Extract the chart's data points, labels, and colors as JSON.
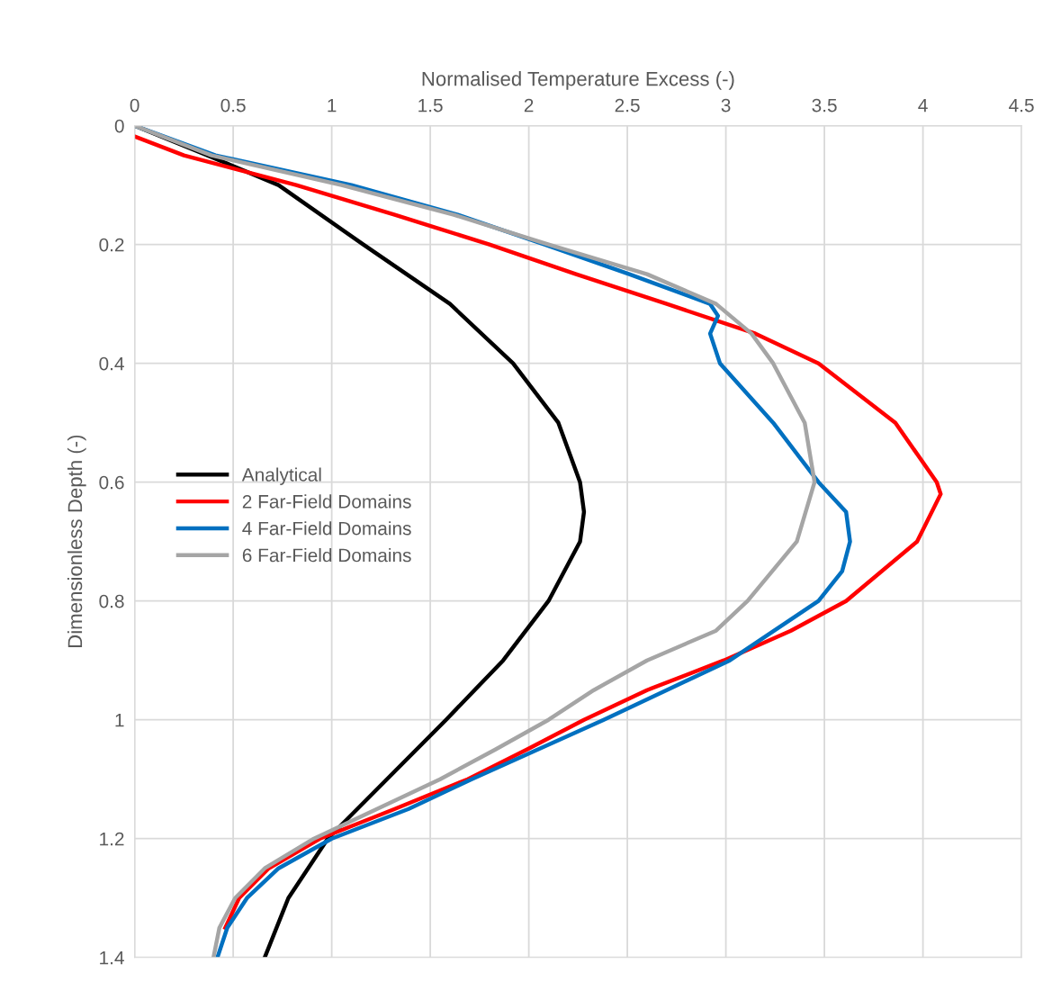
{
  "chart_data": {
    "type": "line",
    "xlabel": "Normalised Temperature Excess (-)",
    "ylabel": "Dimensionless Depth (-)",
    "xlim": [
      0,
      4.5
    ],
    "xticks": [
      0,
      0.5,
      1,
      1.5,
      2,
      2.5,
      3,
      3.5,
      4,
      4.5
    ],
    "ylim": [
      1.4,
      0
    ],
    "yticks": [
      0,
      0.2,
      0.4,
      0.6,
      0.8,
      1,
      1.2,
      1.4
    ],
    "grid": true,
    "legend": "center left",
    "marker": "none",
    "line_style": "solid",
    "series": [
      {
        "name": "Analytical",
        "color": "#000000",
        "x": [
          0,
          0.37,
          0.73,
          1.16,
          1.6,
          1.92,
          2.15,
          2.26,
          2.28,
          2.26,
          2.1,
          1.87,
          1.58,
          1.28,
          0.98,
          0.78,
          0.66
        ],
        "values": [
          0,
          0.05,
          0.1,
          0.2,
          0.3,
          0.4,
          0.5,
          0.6,
          0.65,
          0.7,
          0.8,
          0.9,
          1.0,
          1.1,
          1.2,
          1.3,
          1.4
        ]
      },
      {
        "name": "2 Far-Field Domains",
        "color": "#ff0000",
        "x": [
          0,
          0.25,
          0.82,
          1.32,
          1.8,
          2.24,
          2.7,
          3.15,
          3.47,
          3.86,
          4.07,
          4.09,
          3.97,
          3.61,
          3.33,
          2.99,
          2.6,
          2.28,
          1.99,
          1.69,
          1.32,
          0.94,
          0.68,
          0.53,
          0.46
        ],
        "values": [
          0.018,
          0.05,
          0.1,
          0.15,
          0.2,
          0.25,
          0.3,
          0.35,
          0.4,
          0.5,
          0.6,
          0.62,
          0.7,
          0.8,
          0.85,
          0.9,
          0.95,
          1.0,
          1.05,
          1.1,
          1.15,
          1.2,
          1.25,
          1.3,
          1.35
        ]
      },
      {
        "name": "4 Far-Field Domains",
        "color": "#0070c0",
        "x": [
          0,
          0.41,
          1.1,
          1.64,
          2.08,
          2.51,
          2.92,
          2.96,
          2.92,
          2.97,
          3.24,
          3.47,
          3.61,
          3.63,
          3.59,
          3.47,
          3.02,
          2.38,
          1.71,
          1.39,
          1.0,
          0.73,
          0.57,
          0.47,
          0.42
        ],
        "values": [
          0,
          0.05,
          0.1,
          0.15,
          0.2,
          0.25,
          0.3,
          0.32,
          0.35,
          0.4,
          0.5,
          0.6,
          0.65,
          0.7,
          0.75,
          0.8,
          0.9,
          1.0,
          1.1,
          1.15,
          1.2,
          1.25,
          1.3,
          1.35,
          1.4
        ]
      },
      {
        "name": "6 Far-Field Domains",
        "color": "#a5a5a5",
        "x": [
          0,
          0.39,
          1.05,
          1.62,
          2.1,
          2.6,
          2.95,
          3.13,
          3.24,
          3.4,
          3.45,
          3.36,
          3.11,
          2.95,
          2.6,
          2.33,
          2.1,
          1.83,
          1.55,
          1.23,
          0.91,
          0.66,
          0.51,
          0.43,
          0.4
        ],
        "values": [
          0,
          0.05,
          0.1,
          0.15,
          0.2,
          0.25,
          0.3,
          0.35,
          0.4,
          0.5,
          0.6,
          0.7,
          0.8,
          0.85,
          0.9,
          0.95,
          1.0,
          1.05,
          1.1,
          1.15,
          1.2,
          1.25,
          1.3,
          1.35,
          1.4
        ]
      }
    ]
  }
}
